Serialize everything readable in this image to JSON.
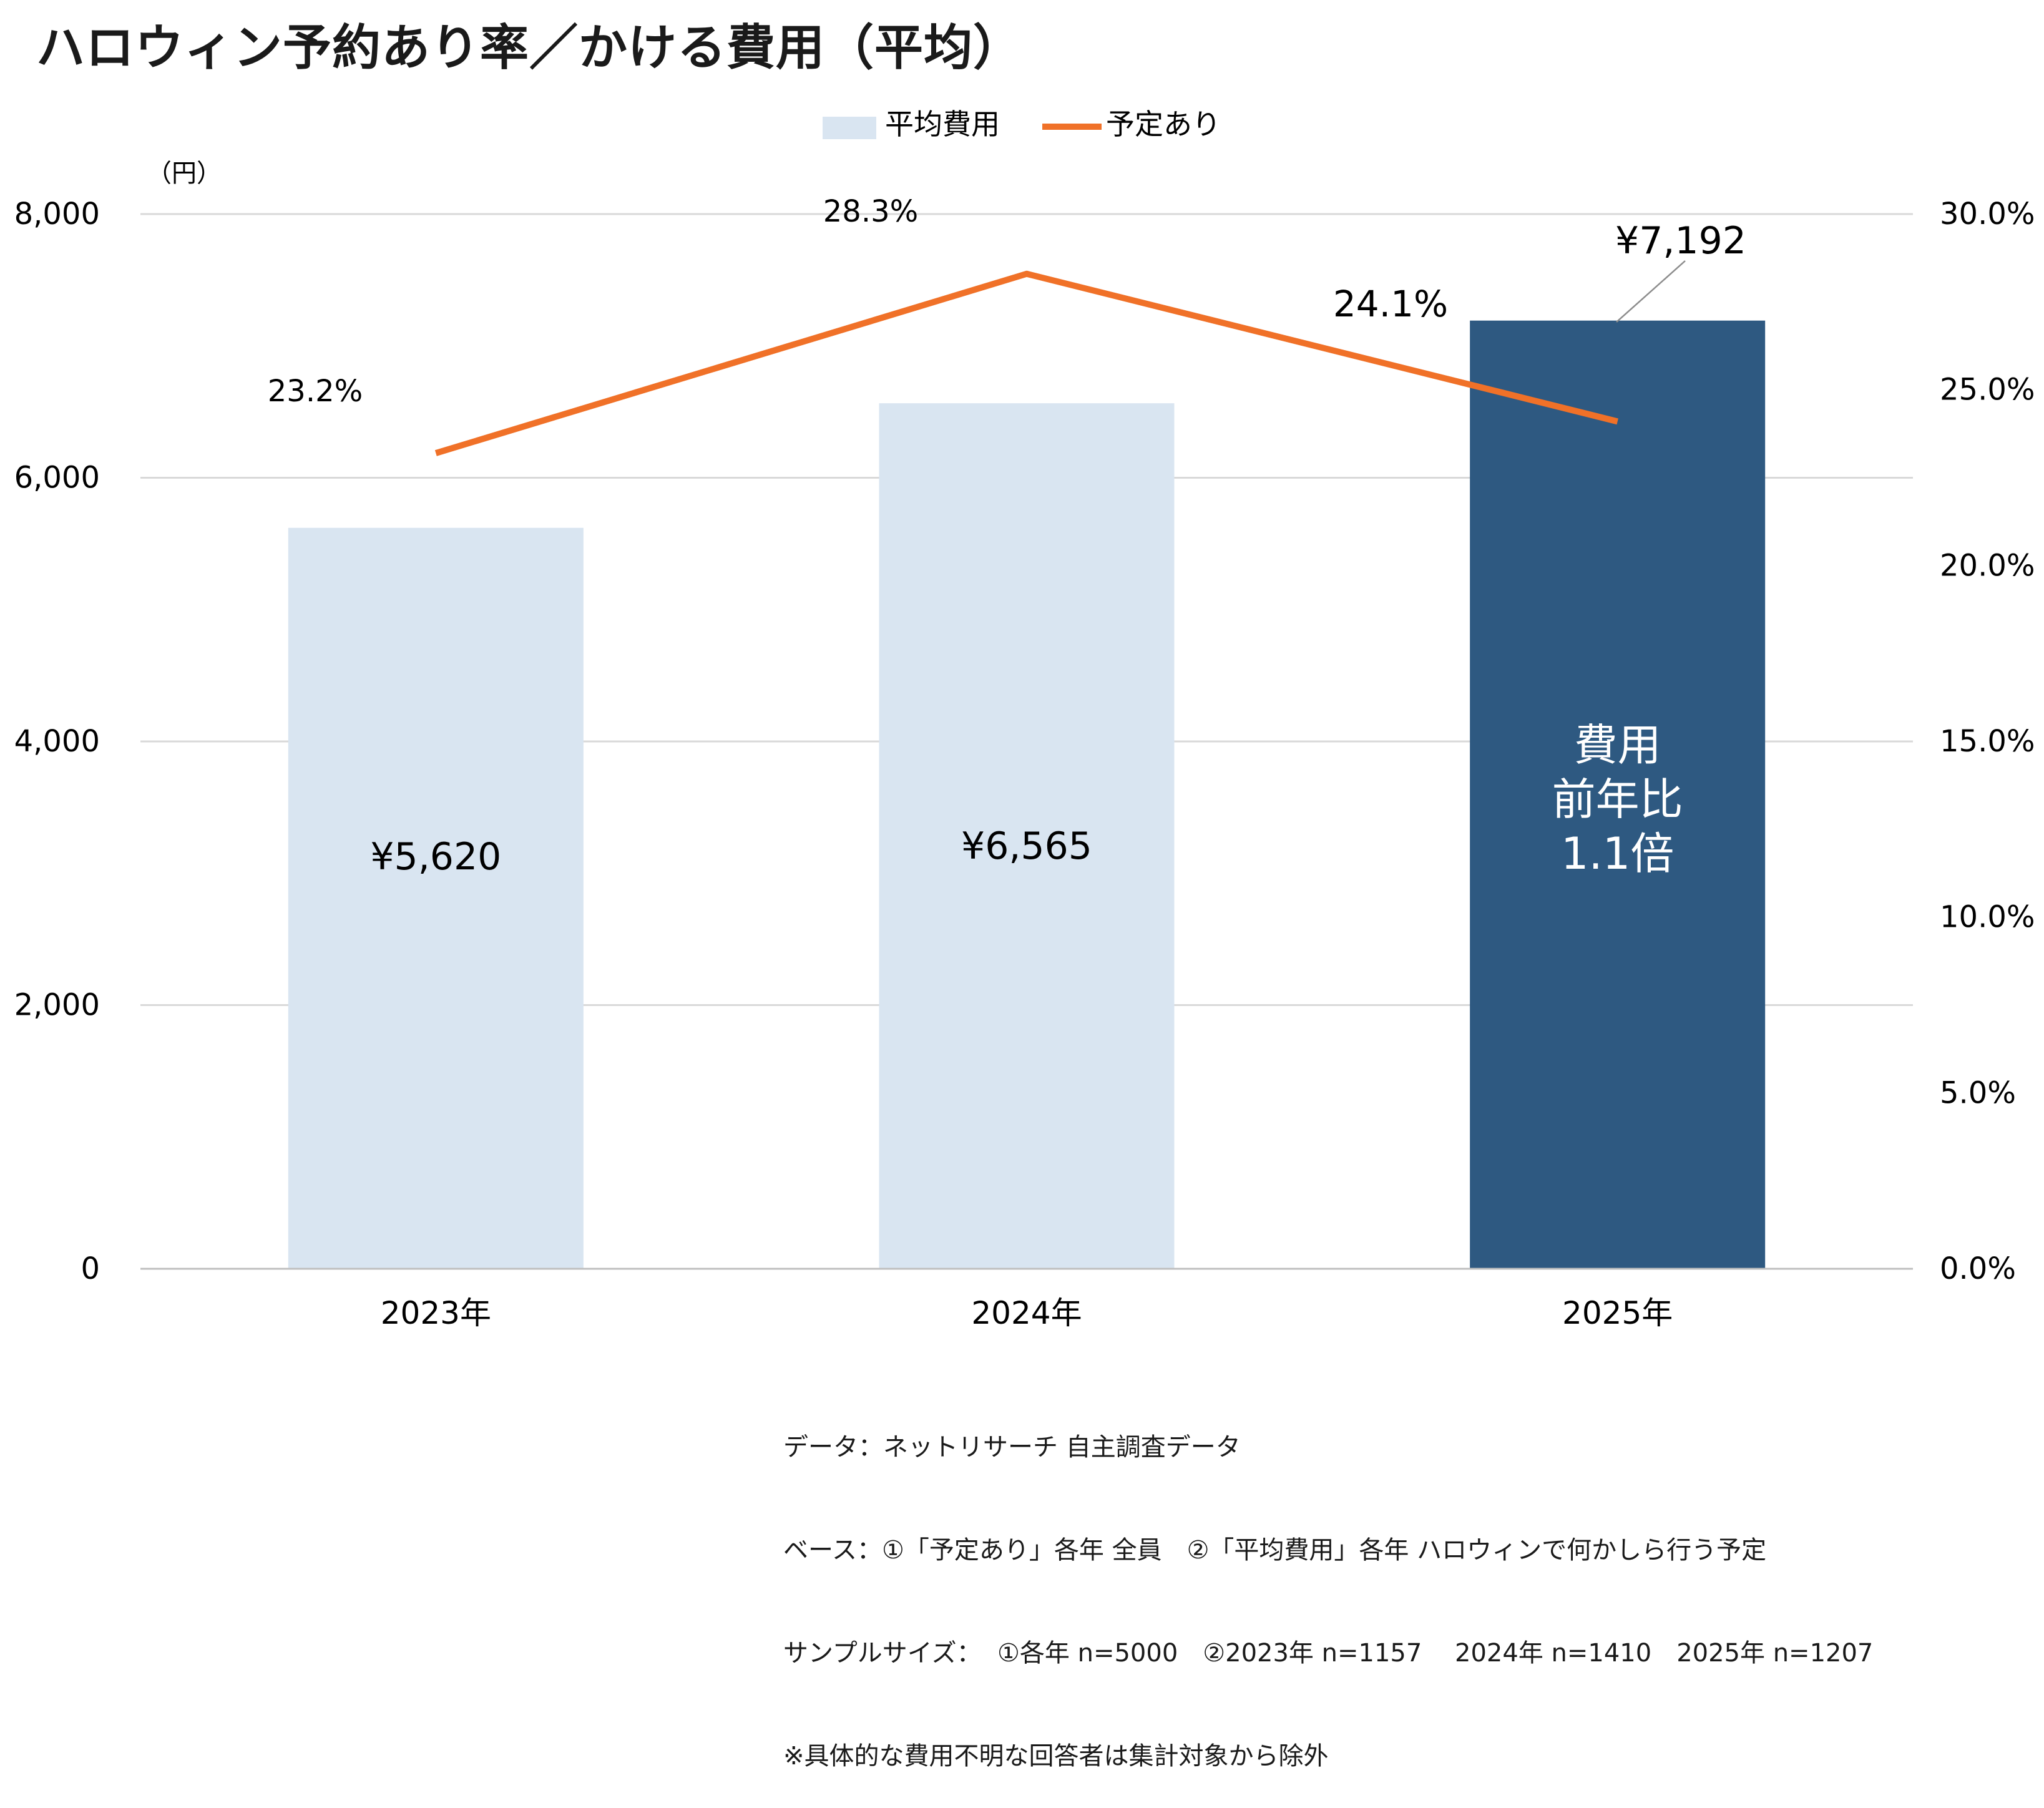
{
  "title": "ハロウィン予約あり率／かける費用（平均）",
  "chart_data": {
    "type": "bar",
    "categories": [
      "2023年",
      "2024年",
      "2025年"
    ],
    "series": [
      {
        "name": "平均費用",
        "type": "bar",
        "axis": "left",
        "values": [
          5620,
          6565,
          7192
        ],
        "labels": [
          "¥5,620",
          "¥6,565",
          "¥7,192"
        ],
        "colors": [
          "#d9e5f1",
          "#d9e5f1",
          "#2e5981"
        ]
      },
      {
        "name": "予定あり",
        "type": "line",
        "axis": "right",
        "values": [
          23.2,
          28.3,
          24.1
        ],
        "labels": [
          "23.2%",
          "28.3%",
          "24.1%"
        ],
        "color": "#f07128"
      }
    ],
    "y_left": {
      "unit_label": "（円）",
      "min": 0,
      "max": 8000,
      "ticks": [
        0,
        2000,
        4000,
        6000,
        8000
      ],
      "tick_labels": [
        "0",
        "2,000",
        "4,000",
        "6,000",
        "8,000"
      ]
    },
    "y_right": {
      "min": 0,
      "max": 30,
      "ticks": [
        0,
        5,
        10,
        15,
        20,
        25,
        30
      ],
      "tick_labels": [
        "0.0%",
        "5.0%",
        "10.0%",
        "15.0%",
        "20.0%",
        "25.0%",
        "30.0%"
      ]
    },
    "annotation_lines": [
      "費用",
      "前年比",
      "1.1倍"
    ],
    "legend_position": "top-center",
    "grid": true
  },
  "footnotes": [
    "データ：ネットリサーチ 自主調査データ",
    "ベース：①「予定あり」各年 全員　②「平均費用」各年 ハロウィンで何かしら行う予定",
    "サンプルサイズ：  ①各年 n=5000　②2023年 n=1157　 2024年 n=1410　2025年 n=1207",
    "※具体的な費用不明な回答者は集計対象から除外"
  ]
}
